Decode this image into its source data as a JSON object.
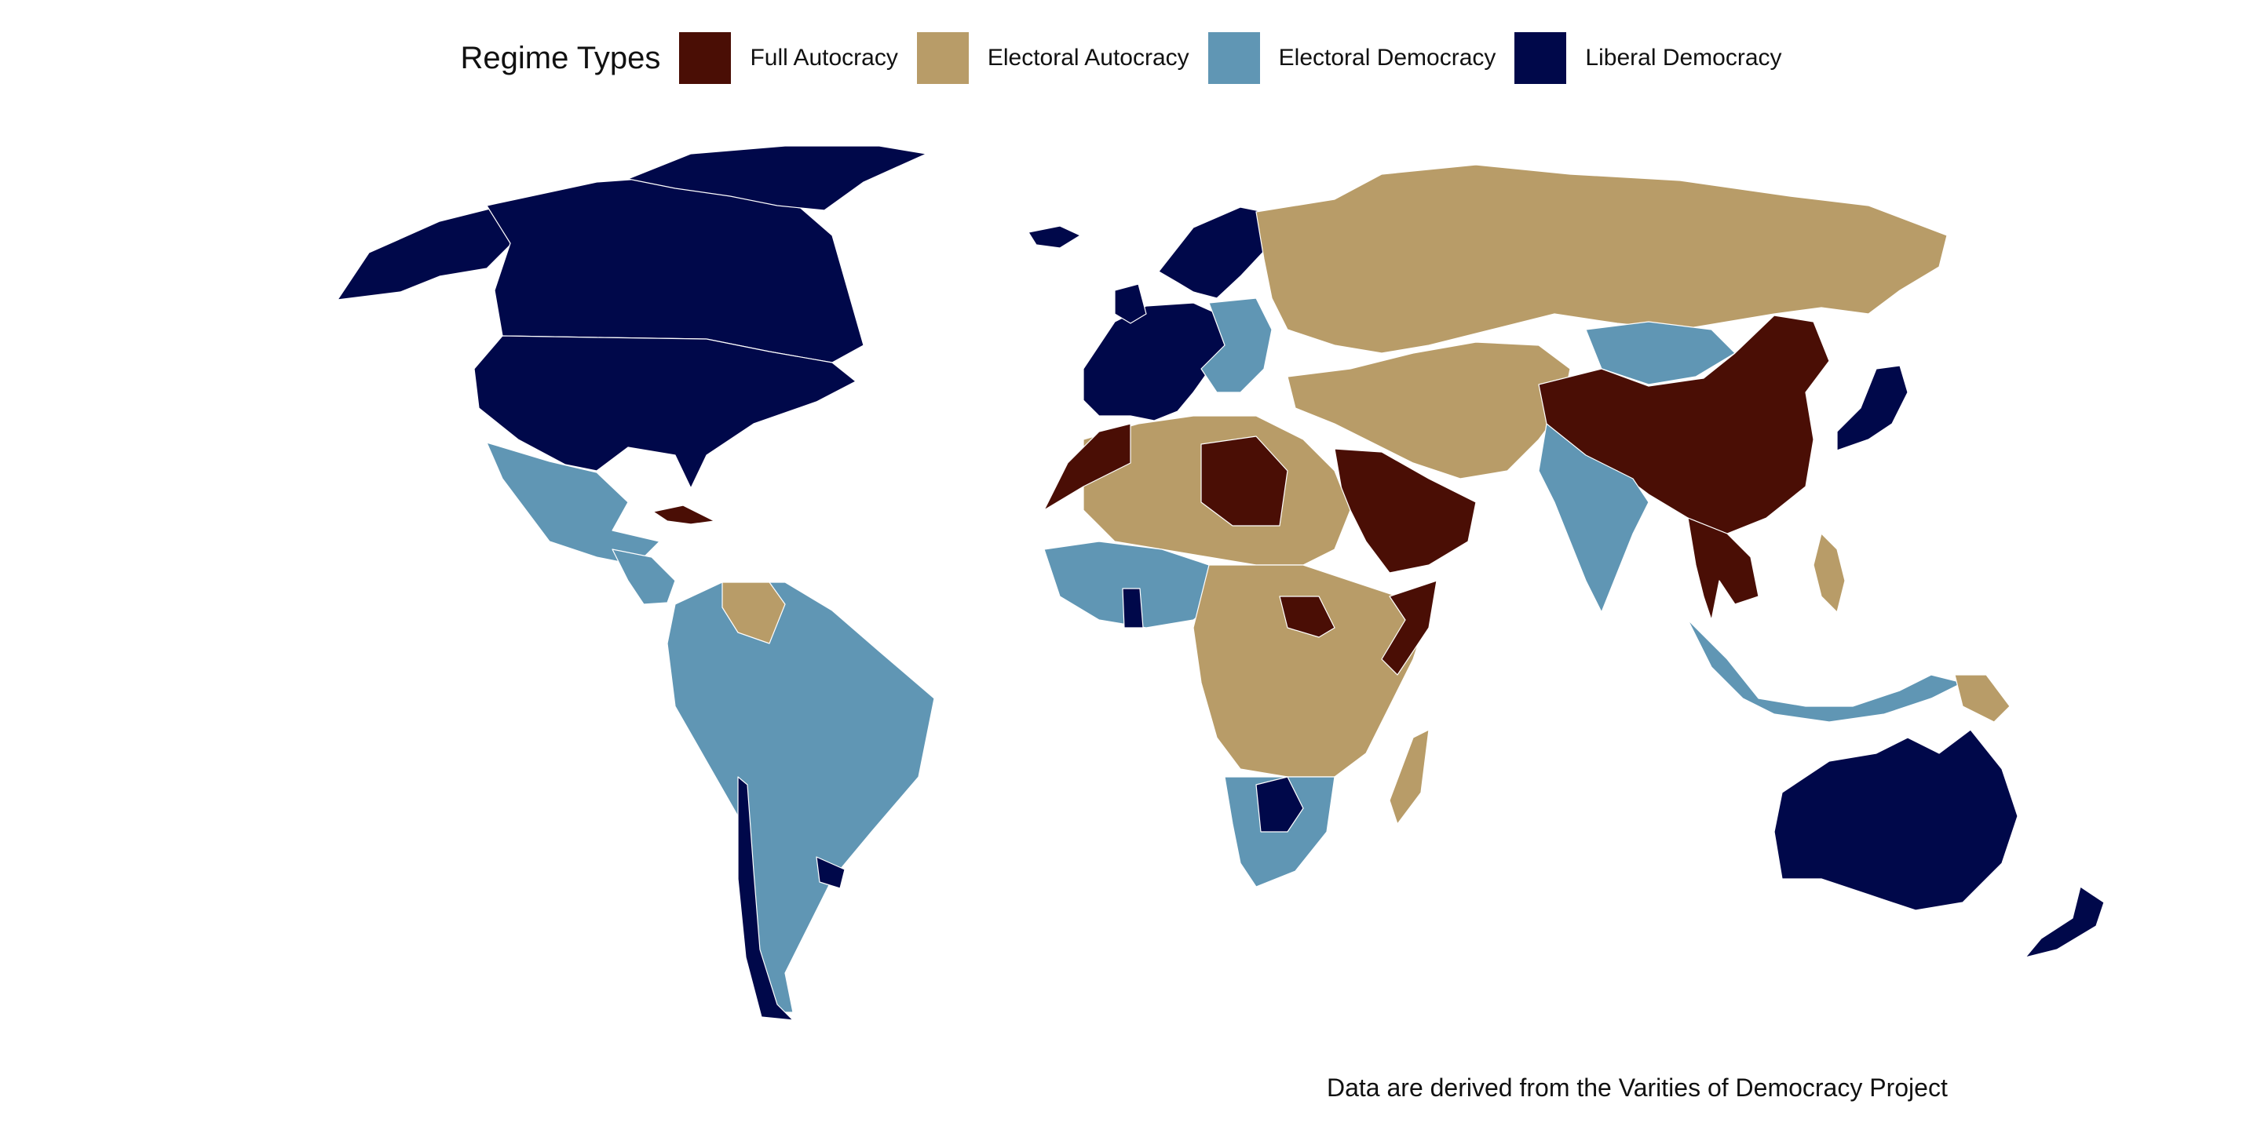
{
  "legend": {
    "title": "Regime Types",
    "items": [
      {
        "label": "Full Autocracy",
        "color": "#4a0e05"
      },
      {
        "label": "Electoral Autocracy",
        "color": "#b89c68"
      },
      {
        "label": "Electoral Democracy",
        "color": "#6096b4"
      },
      {
        "label": "Liberal Democracy",
        "color": "#00084a"
      }
    ]
  },
  "caption": "Data are derived from the Varities of Democracy Project",
  "regions": [
    {
      "name": "Canada",
      "regime": "Liberal Democracy"
    },
    {
      "name": "United States",
      "regime": "Liberal Democracy"
    },
    {
      "name": "Greenland",
      "regime": "Liberal Democracy"
    },
    {
      "name": "Alaska",
      "regime": "Liberal Democracy"
    },
    {
      "name": "Mexico",
      "regime": "Electoral Democracy"
    },
    {
      "name": "Central America",
      "regime": "Electoral Democracy"
    },
    {
      "name": "Cuba",
      "regime": "Full Autocracy"
    },
    {
      "name": "South America",
      "regime": "Electoral Democracy"
    },
    {
      "name": "Venezuela",
      "regime": "Electoral Autocracy"
    },
    {
      "name": "Chile",
      "regime": "Liberal Democracy"
    },
    {
      "name": "Uruguay",
      "regime": "Liberal Democracy"
    },
    {
      "name": "Iceland",
      "regime": "Liberal Democracy"
    },
    {
      "name": "Western Europe",
      "regime": "Liberal Democracy"
    },
    {
      "name": "Scandinavia",
      "regime": "Liberal Democracy"
    },
    {
      "name": "Eastern Europe",
      "regime": "Electoral Democracy"
    },
    {
      "name": "Russia",
      "regime": "Electoral Autocracy"
    },
    {
      "name": "Mongolia",
      "regime": "Electoral Democracy"
    },
    {
      "name": "China",
      "regime": "Full Autocracy"
    },
    {
      "name": "Japan",
      "regime": "Liberal Democracy"
    },
    {
      "name": "Turkey and Central Asia",
      "regime": "Electoral Autocracy"
    },
    {
      "name": "Saudi Arabia",
      "regime": "Full Autocracy"
    },
    {
      "name": "India",
      "regime": "Electoral Democracy"
    },
    {
      "name": "Southeast Asia",
      "regime": "Full Autocracy"
    },
    {
      "name": "Indonesia",
      "regime": "Electoral Democracy"
    },
    {
      "name": "Philippines",
      "regime": "Electoral Autocracy"
    },
    {
      "name": "Papua New Guinea",
      "regime": "Electoral Autocracy"
    },
    {
      "name": "Australia",
      "regime": "Liberal Democracy"
    },
    {
      "name": "New Zealand",
      "regime": "Liberal Democracy"
    },
    {
      "name": "North Africa",
      "regime": "Electoral Autocracy"
    },
    {
      "name": "Morocco",
      "regime": "Full Autocracy"
    },
    {
      "name": "Libya",
      "regime": "Full Autocracy"
    },
    {
      "name": "West Africa",
      "regime": "Electoral Democracy"
    },
    {
      "name": "Ghana",
      "regime": "Liberal Democracy"
    },
    {
      "name": "Central Africa",
      "regime": "Electoral Autocracy"
    },
    {
      "name": "South Sudan",
      "regime": "Full Autocracy"
    },
    {
      "name": "Somalia",
      "regime": "Full Autocracy"
    },
    {
      "name": "Southern Africa",
      "regime": "Electoral Democracy"
    },
    {
      "name": "Botswana",
      "regime": "Liberal Democracy"
    },
    {
      "name": "Madagascar",
      "regime": "Electoral Autocracy"
    }
  ]
}
